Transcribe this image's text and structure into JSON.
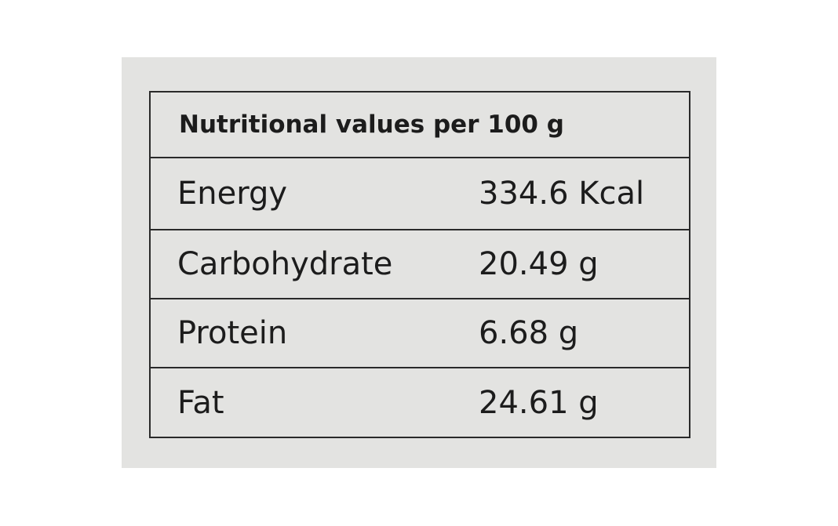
{
  "table": {
    "title": "Nutritional values per 100 g",
    "rows": [
      [
        "Energy",
        "334.6 Kcal"
      ],
      [
        "Carbohydrate",
        "20.49 g"
      ],
      [
        "Protein",
        "6.68 g"
      ],
      [
        "Fat",
        "24.61 g"
      ]
    ]
  }
}
